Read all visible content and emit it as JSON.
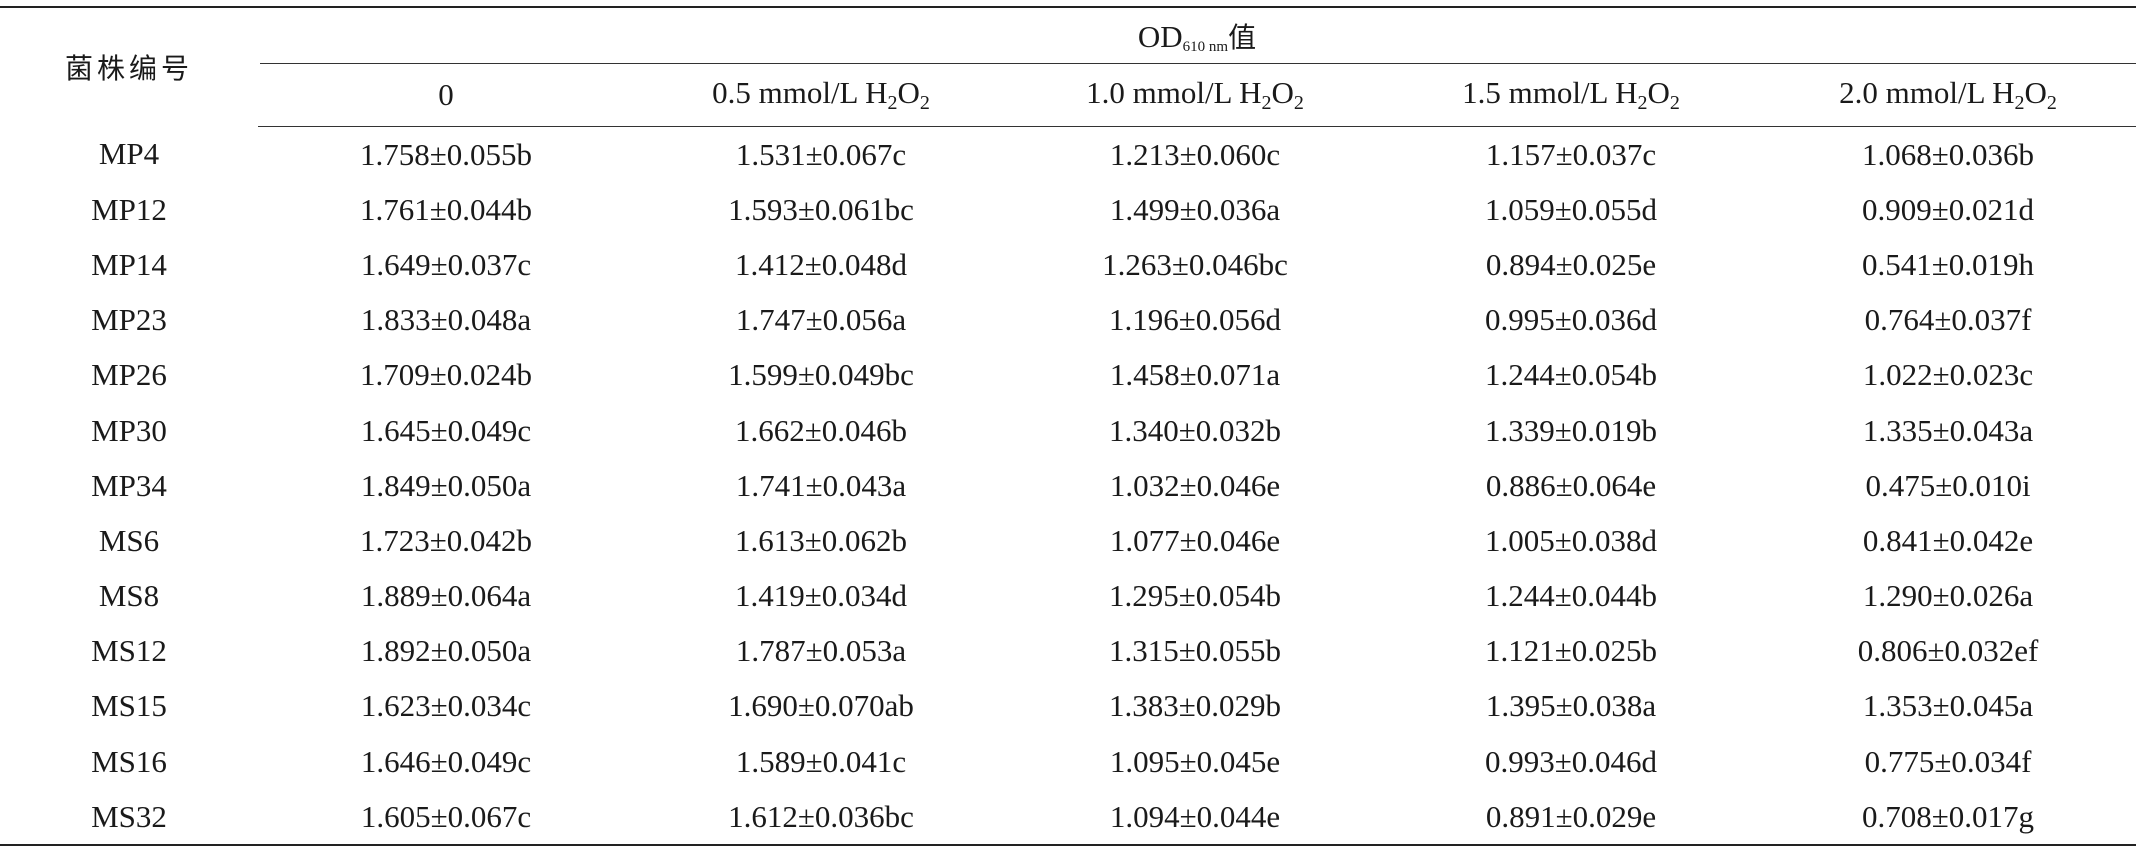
{
  "table": {
    "strain_header": "菌株编号",
    "group_header": {
      "base": "OD",
      "subscript": "610 nm",
      "suffix": "值"
    },
    "columns": [
      {
        "prefix": "0",
        "sub1": "",
        "mid": "",
        "sub2": ""
      },
      {
        "prefix": "0.5 mmol/L H",
        "sub1": "2",
        "mid": "O",
        "sub2": "2"
      },
      {
        "prefix": "1.0 mmol/L H",
        "sub1": "2",
        "mid": "O",
        "sub2": "2"
      },
      {
        "prefix": "1.5 mmol/L H",
        "sub1": "2",
        "mid": "O",
        "sub2": "2"
      },
      {
        "prefix": "2.0 mmol/L H",
        "sub1": "2",
        "mid": "O",
        "sub2": "2"
      }
    ],
    "rows": [
      {
        "strain": "MP4",
        "values": [
          "1.758±0.055b",
          "1.531±0.067c",
          "1.213±0.060c",
          "1.157±0.037c",
          "1.068±0.036b"
        ]
      },
      {
        "strain": "MP12",
        "values": [
          "1.761±0.044b",
          "1.593±0.061bc",
          "1.499±0.036a",
          "1.059±0.055d",
          "0.909±0.021d"
        ]
      },
      {
        "strain": "MP14",
        "values": [
          "1.649±0.037c",
          "1.412±0.048d",
          "1.263±0.046bc",
          "0.894±0.025e",
          "0.541±0.019h"
        ]
      },
      {
        "strain": "MP23",
        "values": [
          "1.833±0.048a",
          "1.747±0.056a",
          "1.196±0.056d",
          "0.995±0.036d",
          "0.764±0.037f"
        ]
      },
      {
        "strain": "MP26",
        "values": [
          "1.709±0.024b",
          "1.599±0.049bc",
          "1.458±0.071a",
          "1.244±0.054b",
          "1.022±0.023c"
        ]
      },
      {
        "strain": "MP30",
        "values": [
          "1.645±0.049c",
          "1.662±0.046b",
          "1.340±0.032b",
          "1.339±0.019b",
          "1.335±0.043a"
        ]
      },
      {
        "strain": "MP34",
        "values": [
          "1.849±0.050a",
          "1.741±0.043a",
          "1.032±0.046e",
          "0.886±0.064e",
          "0.475±0.010i"
        ]
      },
      {
        "strain": "MS6",
        "values": [
          "1.723±0.042b",
          "1.613±0.062b",
          "1.077±0.046e",
          "1.005±0.038d",
          "0.841±0.042e"
        ]
      },
      {
        "strain": "MS8",
        "values": [
          "1.889±0.064a",
          "1.419±0.034d",
          "1.295±0.054b",
          "1.244±0.044b",
          "1.290±0.026a"
        ]
      },
      {
        "strain": "MS12",
        "values": [
          "1.892±0.050a",
          "1.787±0.053a",
          "1.315±0.055b",
          "1.121±0.025b",
          "0.806±0.032ef"
        ]
      },
      {
        "strain": "MS15",
        "values": [
          "1.623±0.034c",
          "1.690±0.070ab",
          "1.383±0.029b",
          "1.395±0.038a",
          "1.353±0.045a"
        ]
      },
      {
        "strain": "MS16",
        "values": [
          "1.646±0.049c",
          "1.589±0.041c",
          "1.095±0.045e",
          "0.993±0.046d",
          "0.775±0.034f"
        ]
      },
      {
        "strain": "MS32",
        "values": [
          "1.605±0.067c",
          "1.612±0.036bc",
          "1.094±0.044e",
          "0.891±0.029e",
          "0.708±0.017g"
        ]
      }
    ]
  }
}
